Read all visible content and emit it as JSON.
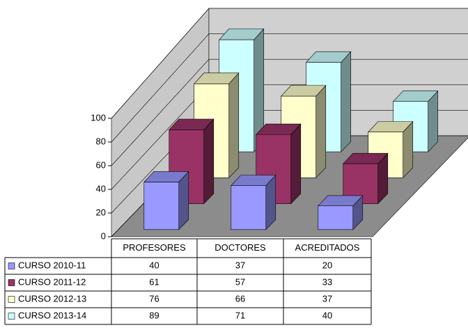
{
  "chart_data": {
    "type": "bar3d",
    "categories": [
      "PROFESORES",
      "DOCTORES",
      "ACREDITADOS"
    ],
    "series": [
      {
        "name": "CURSO 2010-11",
        "color": "#9999ff",
        "values": [
          40,
          37,
          20
        ]
      },
      {
        "name": "CURSO 2011-12",
        "color": "#993366",
        "values": [
          61,
          57,
          33
        ]
      },
      {
        "name": "CURSO 2012-13",
        "color": "#ffffcc",
        "values": [
          76,
          66,
          37
        ]
      },
      {
        "name": "CURSO 2013-14",
        "color": "#ccffff",
        "values": [
          89,
          71,
          40
        ]
      }
    ],
    "ylim": [
      0,
      100
    ],
    "yticks": [
      0,
      20,
      40,
      60,
      80,
      100
    ],
    "grid": true
  }
}
